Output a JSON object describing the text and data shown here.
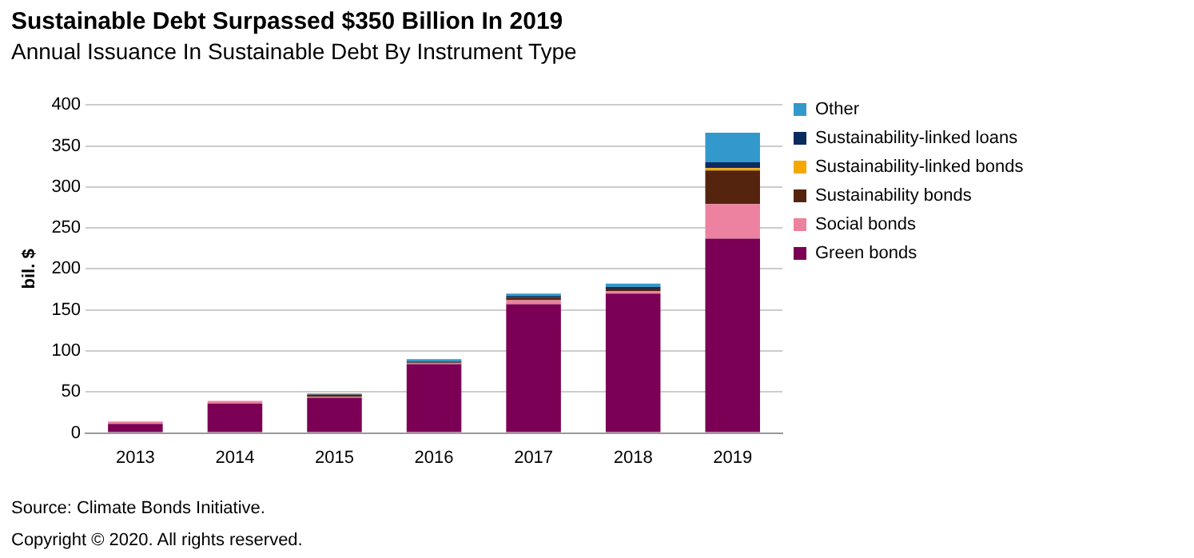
{
  "chart_data": {
    "type": "bar",
    "title": "Sustainable Debt Surpassed $350 Billion In 2019",
    "subtitle": "Annual Issuance In Sustainable Debt By Instrument Type",
    "ylabel": "bil. $",
    "categories": [
      "2013",
      "2014",
      "2015",
      "2016",
      "2017",
      "2018",
      "2019"
    ],
    "stacked": true,
    "series": [
      {
        "name": "Green bonds",
        "color": "#7b0055",
        "values": [
          11,
          36,
          43,
          84,
          157,
          170,
          237
        ]
      },
      {
        "name": "Social bonds",
        "color": "#ec82a0",
        "values": [
          3,
          3,
          1,
          1,
          5,
          3,
          42
        ]
      },
      {
        "name": "Sustainability bonds",
        "color": "#55240f",
        "values": [
          0,
          0,
          3,
          1,
          3,
          3,
          41
        ]
      },
      {
        "name": "Sustainability-linked bonds",
        "color": "#f5a800",
        "values": [
          0,
          0,
          0,
          0,
          0,
          0,
          3
        ]
      },
      {
        "name": "Sustainability-linked loans",
        "color": "#0a2b5e",
        "values": [
          0,
          0,
          0,
          1,
          2,
          2,
          7
        ]
      },
      {
        "name": "Other",
        "color": "#3399cc",
        "values": [
          0,
          0,
          1,
          3,
          3,
          4,
          36
        ]
      }
    ],
    "ylim": [
      0,
      400
    ],
    "yticks": [
      0,
      50,
      100,
      150,
      200,
      250,
      300,
      350,
      400
    ],
    "grid": "y",
    "legend": "right",
    "annotations": [
      "Source: Climate Bonds Initiative.",
      "Copyright © 2020. All rights reserved."
    ]
  }
}
